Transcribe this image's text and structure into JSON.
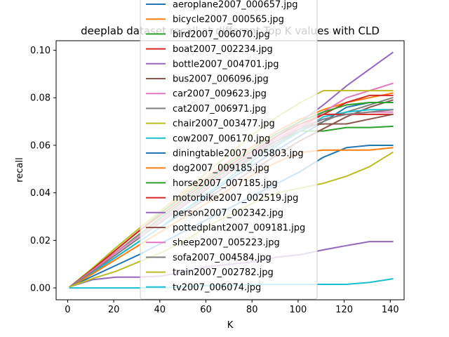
{
  "chart_data": {
    "type": "line",
    "title": "deeplab dataset recall at different Top K values with CLD",
    "xlabel": "K",
    "ylabel": "recall",
    "xlim": [
      -5,
      146
    ],
    "ylim": [
      -0.005,
      0.104
    ],
    "xticks": [
      0,
      20,
      40,
      60,
      80,
      100,
      120,
      140
    ],
    "yticks": [
      0.0,
      0.02,
      0.04,
      0.06,
      0.08,
      0.1
    ],
    "ytick_labels": [
      "0.00",
      "0.02",
      "0.04",
      "0.06",
      "0.08",
      "0.10"
    ],
    "grid": false,
    "legend_position": "top-center",
    "x": [
      1,
      11,
      21,
      31,
      41,
      51,
      61,
      71,
      81,
      91,
      101,
      111,
      121,
      131,
      141
    ],
    "series": [
      {
        "name": "aeroplane2007_000657.jpg",
        "color": "#1f77b4",
        "values": [
          0.0005,
          0.0065,
          0.013,
          0.0195,
          0.026,
          0.033,
          0.039,
          0.046,
          0.052,
          0.058,
          0.064,
          0.07,
          0.076,
          0.078,
          0.078
        ]
      },
      {
        "name": "bicycle2007_000565.jpg",
        "color": "#ff7f0e",
        "values": [
          0.0005,
          0.008,
          0.016,
          0.024,
          0.032,
          0.04,
          0.047,
          0.054,
          0.06,
          0.066,
          0.071,
          0.075,
          0.078,
          0.08,
          0.082
        ]
      },
      {
        "name": "bird2007_006070.jpg",
        "color": "#2ca02c",
        "values": [
          0.0005,
          0.0075,
          0.015,
          0.0225,
          0.03,
          0.037,
          0.044,
          0.051,
          0.057,
          0.062,
          0.066,
          0.066,
          0.0675,
          0.0675,
          0.068
        ]
      },
      {
        "name": "boat2007_002234.jpg",
        "color": "#d62728",
        "values": [
          0.0005,
          0.0075,
          0.015,
          0.022,
          0.029,
          0.036,
          0.043,
          0.05,
          0.056,
          0.062,
          0.068,
          0.073,
          0.078,
          0.081,
          0.081
        ]
      },
      {
        "name": "bottle2007_004701.jpg",
        "color": "#9467bd",
        "values": [
          0.0005,
          0.0075,
          0.015,
          0.022,
          0.029,
          0.036,
          0.043,
          0.05,
          0.057,
          0.064,
          0.07,
          0.077,
          0.085,
          0.092,
          0.099
        ]
      },
      {
        "name": "bus2007_006096.jpg",
        "color": "#8c564b",
        "values": [
          0.0005,
          0.0065,
          0.013,
          0.0195,
          0.026,
          0.032,
          0.038,
          0.044,
          0.05,
          0.056,
          0.062,
          0.067,
          0.072,
          0.076,
          0.079
        ]
      },
      {
        "name": "car2007_009623.jpg",
        "color": "#e377c2",
        "values": [
          0.0005,
          0.0075,
          0.015,
          0.022,
          0.029,
          0.036,
          0.043,
          0.05,
          0.056,
          0.062,
          0.068,
          0.074,
          0.08,
          0.083,
          0.086
        ]
      },
      {
        "name": "cat2007_006971.jpg",
        "color": "#7f7f7f",
        "values": [
          0.0005,
          0.007,
          0.014,
          0.021,
          0.028,
          0.035,
          0.042,
          0.049,
          0.055,
          0.061,
          0.066,
          0.07,
          0.074,
          0.077,
          0.08
        ]
      },
      {
        "name": "chair2007_003477.jpg",
        "color": "#bcbd22",
        "values": [
          0.0005,
          0.0085,
          0.017,
          0.025,
          0.033,
          0.041,
          0.049,
          0.057,
          0.065,
          0.072,
          0.078,
          0.083,
          0.083,
          0.083,
          0.083
        ]
      },
      {
        "name": "cow2007_006170.jpg",
        "color": "#17becf",
        "values": [
          0.0005,
          0.0065,
          0.013,
          0.0195,
          0.026,
          0.033,
          0.04,
          0.047,
          0.054,
          0.06,
          0.066,
          0.072,
          0.074,
          0.075,
          0.075
        ]
      },
      {
        "name": "diningtable2007_005803.jpg",
        "color": "#1f77b4",
        "values": [
          0.0005,
          0.005,
          0.0095,
          0.014,
          0.019,
          0.024,
          0.029,
          0.034,
          0.039,
          0.044,
          0.049,
          0.055,
          0.059,
          0.06,
          0.06
        ]
      },
      {
        "name": "dog2007_009185.jpg",
        "color": "#ff7f0e",
        "values": [
          0.0005,
          0.006,
          0.012,
          0.018,
          0.024,
          0.03,
          0.036,
          0.042,
          0.048,
          0.053,
          0.057,
          0.058,
          0.058,
          0.058,
          0.059
        ]
      },
      {
        "name": "horse2007_007185.jpg",
        "color": "#2ca02c",
        "values": [
          0.0005,
          0.008,
          0.016,
          0.024,
          0.032,
          0.039,
          0.046,
          0.053,
          0.059,
          0.065,
          0.07,
          0.074,
          0.077,
          0.078,
          0.078
        ]
      },
      {
        "name": "motorbike2007_002519.jpg",
        "color": "#d62728",
        "values": [
          0.0005,
          0.008,
          0.016,
          0.024,
          0.031,
          0.038,
          0.045,
          0.052,
          0.058,
          0.064,
          0.069,
          0.073,
          0.073,
          0.073,
          0.073
        ]
      },
      {
        "name": "person2007_002342.jpg",
        "color": "#9467bd",
        "values": [
          0.0005,
          0.0035,
          0.0045,
          0.0045,
          0.005,
          0.007,
          0.009,
          0.01,
          0.011,
          0.013,
          0.014,
          0.016,
          0.0178,
          0.0195,
          0.0195
        ]
      },
      {
        "name": "pottedplant2007_009181.jpg",
        "color": "#8c564b",
        "values": [
          0.0005,
          0.0075,
          0.015,
          0.022,
          0.029,
          0.036,
          0.043,
          0.05,
          0.057,
          0.063,
          0.068,
          0.069,
          0.069,
          0.071,
          0.073
        ]
      },
      {
        "name": "sheep2007_005223.jpg",
        "color": "#e377c2",
        "values": [
          0.0005,
          0.0075,
          0.015,
          0.022,
          0.029,
          0.036,
          0.043,
          0.05,
          0.057,
          0.063,
          0.068,
          0.071,
          0.073,
          0.074,
          0.074
        ]
      },
      {
        "name": "sofa2007_004584.jpg",
        "color": "#7f7f7f",
        "values": [
          0.0005,
          0.007,
          0.014,
          0.021,
          0.028,
          0.035,
          0.042,
          0.049,
          0.056,
          0.062,
          0.067,
          0.071,
          0.073,
          0.074,
          0.075
        ]
      },
      {
        "name": "train2007_002782.jpg",
        "color": "#bcbd22",
        "values": [
          0.0005,
          0.004,
          0.007,
          0.011,
          0.015,
          0.02,
          0.026,
          0.031,
          0.036,
          0.04,
          0.042,
          0.044,
          0.047,
          0.051,
          0.057
        ]
      },
      {
        "name": "tv2007_006074.jpg",
        "color": "#17becf",
        "values": [
          0.0,
          0.0,
          0.0,
          0.0,
          0.0,
          0.0005,
          0.001,
          0.001,
          0.0015,
          0.0015,
          0.0015,
          0.0015,
          0.0015,
          0.0023,
          0.0038
        ]
      }
    ]
  }
}
